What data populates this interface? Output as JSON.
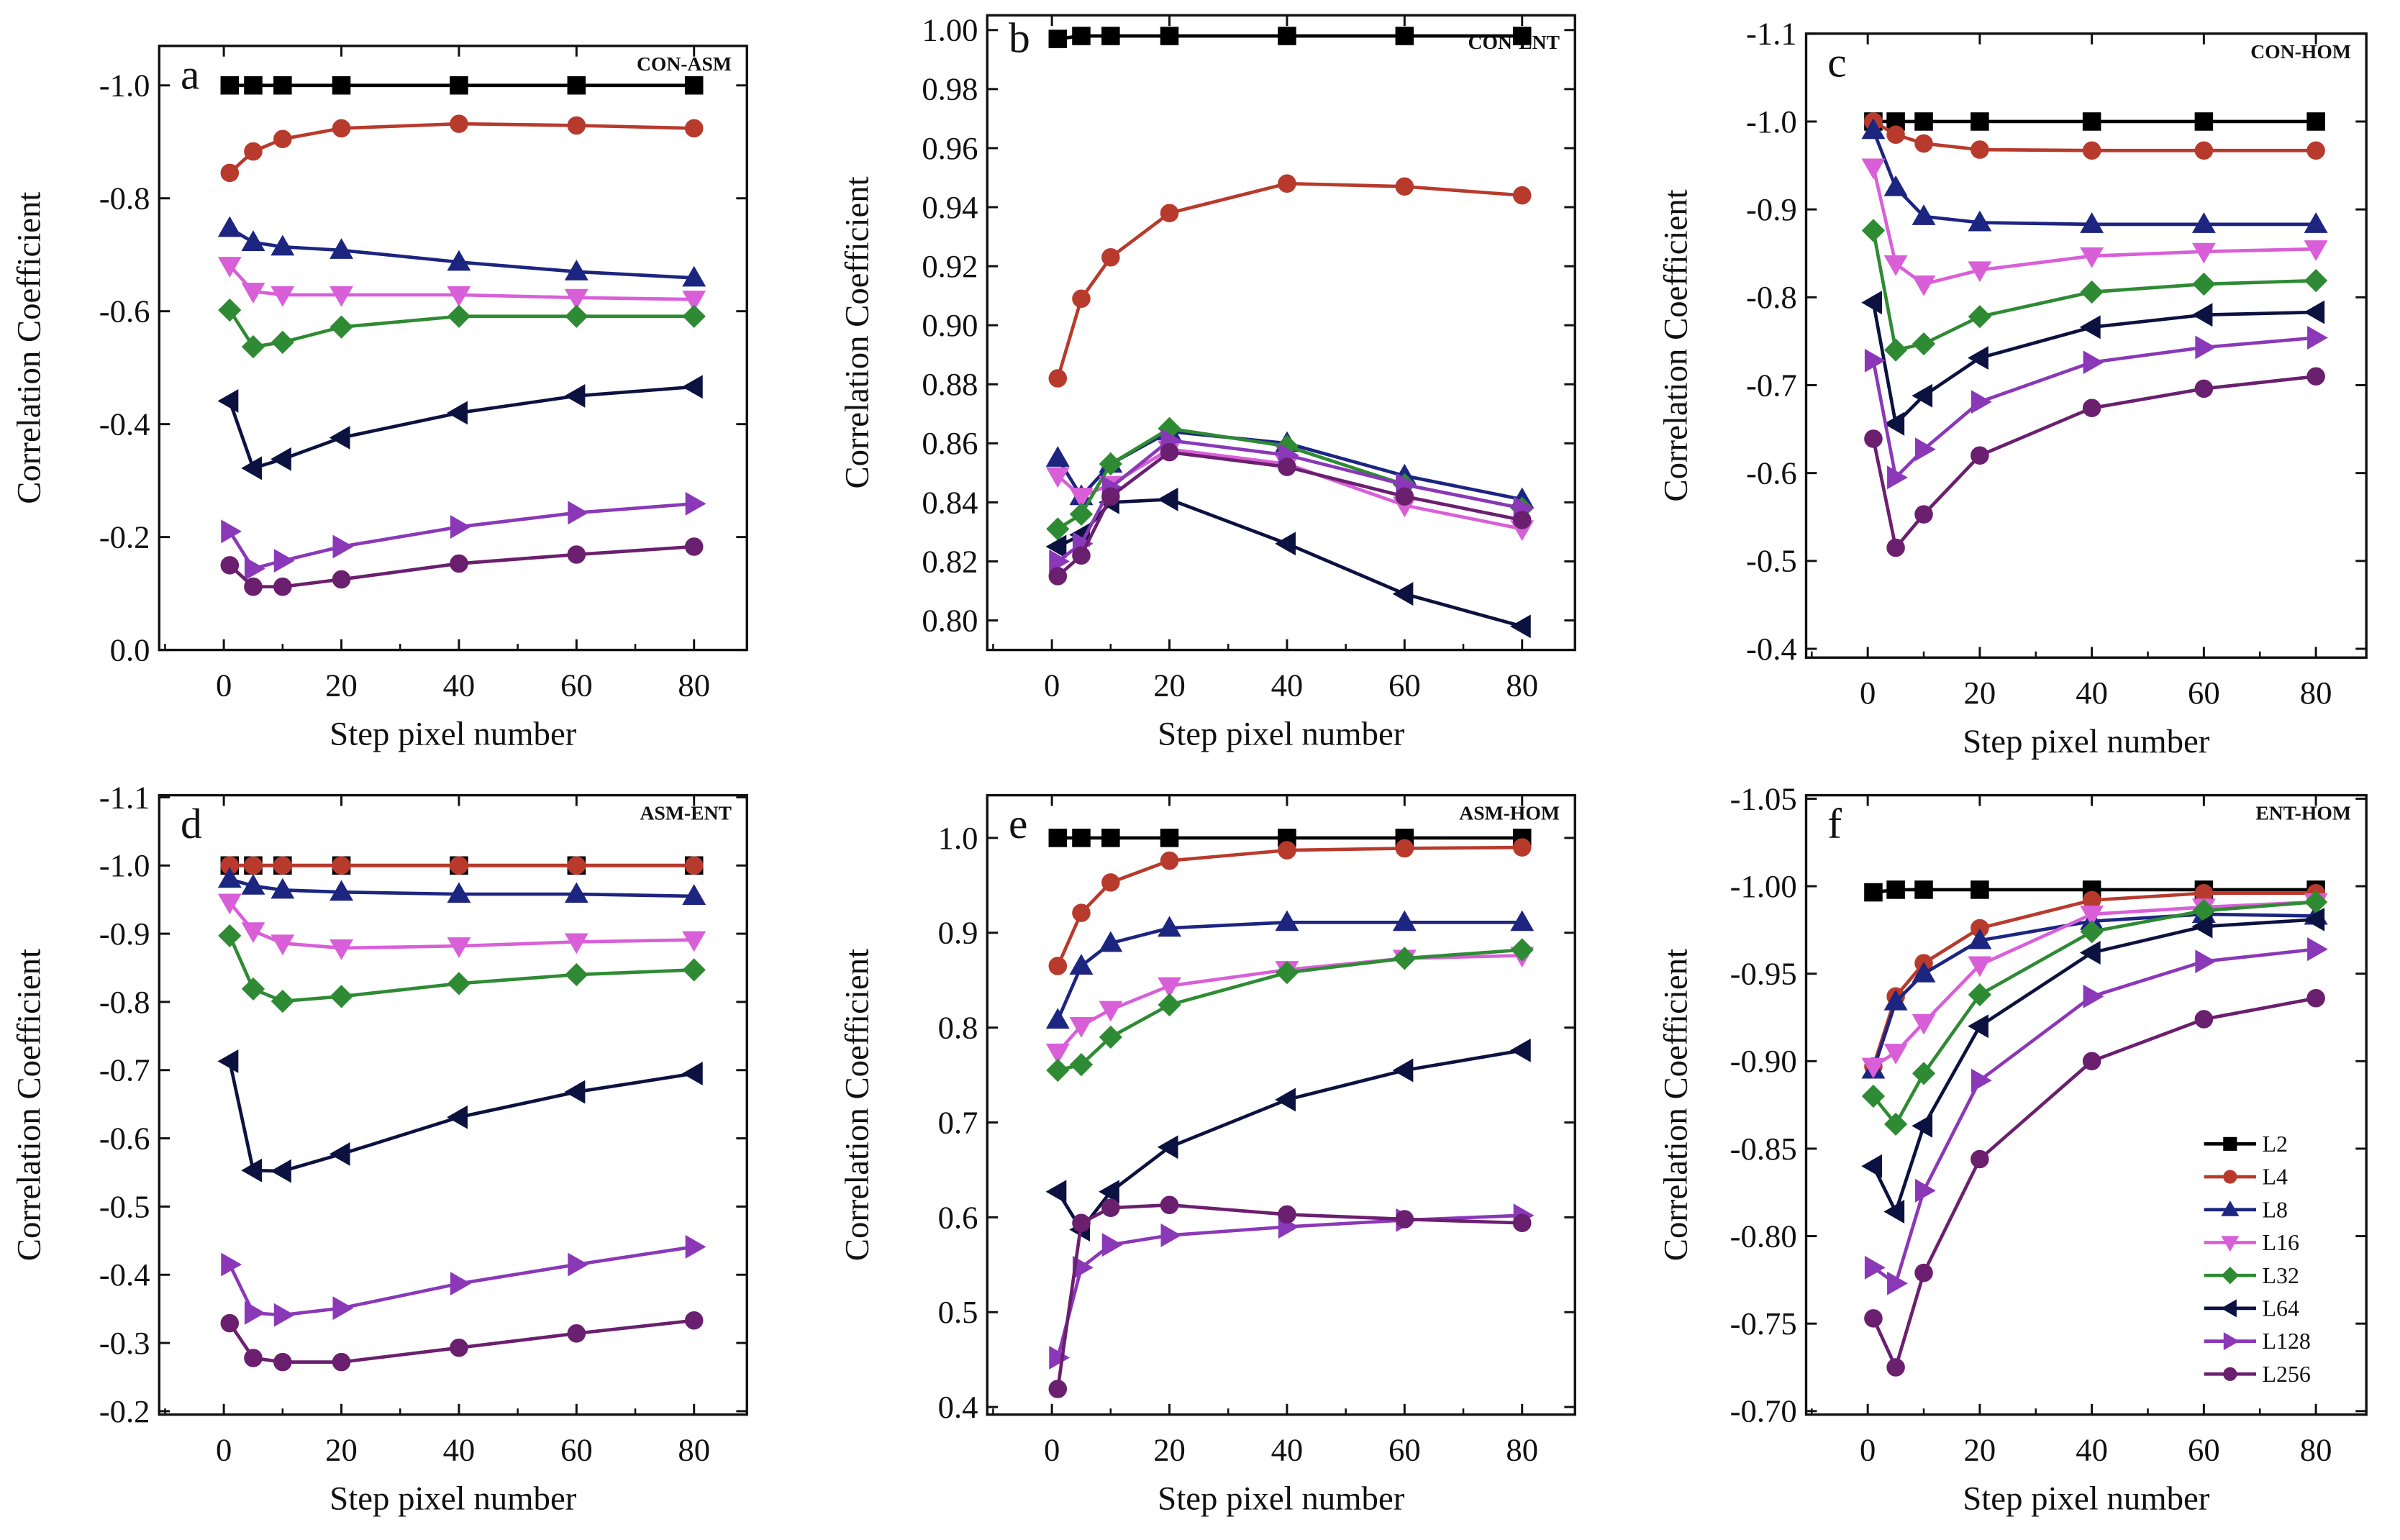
{
  "chart_data": [
    {
      "type": "line",
      "panel": "a",
      "title": "CON-ASM",
      "xlabel": "Step pixel number",
      "ylabel": "Correlation Coefficient",
      "x": [
        1,
        5,
        10,
        20,
        40,
        60,
        80
      ],
      "xlim": [
        -11,
        89
      ],
      "xticks": [
        0,
        20,
        40,
        60,
        80
      ],
      "ylim": [
        0.0,
        -1.07
      ],
      "yticks": [
        0.0,
        -0.2,
        -0.4,
        -0.6,
        -0.8,
        -1.0
      ],
      "ytick_labels": [
        "0.0",
        "-0.2",
        "-0.4",
        "-0.6",
        "-0.8",
        "-1.0"
      ],
      "series": [
        {
          "name": "L2",
          "values": [
            -1.0,
            -1.0,
            -1.0,
            -1.0,
            -1.0,
            -1.0,
            -1.0
          ]
        },
        {
          "name": "L4",
          "values": [
            -0.845,
            -0.883,
            -0.905,
            -0.924,
            -0.932,
            -0.929,
            -0.924
          ]
        },
        {
          "name": "L8",
          "values": [
            -0.747,
            -0.722,
            -0.714,
            -0.708,
            -0.687,
            -0.67,
            -0.659
          ]
        },
        {
          "name": "L16",
          "values": [
            -0.681,
            -0.635,
            -0.629,
            -0.629,
            -0.629,
            -0.624,
            -0.621
          ]
        },
        {
          "name": "L32",
          "values": [
            -0.602,
            -0.537,
            -0.545,
            -0.572,
            -0.591,
            -0.591,
            -0.591
          ]
        },
        {
          "name": "L64",
          "values": [
            -0.441,
            -0.322,
            -0.338,
            -0.376,
            -0.42,
            -0.45,
            -0.466
          ]
        },
        {
          "name": "L128",
          "values": [
            -0.21,
            -0.144,
            -0.158,
            -0.183,
            -0.218,
            -0.243,
            -0.259
          ]
        },
        {
          "name": "L256",
          "values": [
            -0.15,
            -0.112,
            -0.112,
            -0.125,
            -0.153,
            -0.169,
            -0.183
          ]
        }
      ]
    },
    {
      "type": "line",
      "panel": "b",
      "title": "CON-ENT",
      "xlabel": "Step pixel number",
      "ylabel": "Correlation Coefficient",
      "x": [
        1,
        5,
        10,
        20,
        40,
        60,
        80
      ],
      "xlim": [
        -11,
        89
      ],
      "xticks": [
        0,
        20,
        40,
        60,
        80
      ],
      "ylim": [
        0.79,
        1.005
      ],
      "yticks": [
        0.8,
        0.82,
        0.84,
        0.86,
        0.88,
        0.9,
        0.92,
        0.94,
        0.96,
        0.98,
        1.0
      ],
      "ytick_labels": [
        "0.80",
        "0.82",
        "0.84",
        "0.86",
        "0.88",
        "0.90",
        "0.92",
        "0.94",
        "0.96",
        "0.98",
        "1.00"
      ],
      "series": [
        {
          "name": "L2",
          "values": [
            0.997,
            0.998,
            0.998,
            0.998,
            0.998,
            0.998,
            0.998
          ]
        },
        {
          "name": "L4",
          "values": [
            0.882,
            0.909,
            0.923,
            0.938,
            0.948,
            0.947,
            0.944
          ]
        },
        {
          "name": "L8",
          "values": [
            0.855,
            0.842,
            0.853,
            0.864,
            0.86,
            0.849,
            0.841
          ]
        },
        {
          "name": "L16",
          "values": [
            0.849,
            0.842,
            0.846,
            0.858,
            0.853,
            0.839,
            0.831
          ]
        },
        {
          "name": "L32",
          "values": [
            0.831,
            0.836,
            0.853,
            0.865,
            0.859,
            0.846,
            0.838
          ]
        },
        {
          "name": "L64",
          "values": [
            0.825,
            0.829,
            0.84,
            0.841,
            0.826,
            0.809,
            0.798
          ]
        },
        {
          "name": "L128",
          "values": [
            0.82,
            0.826,
            0.845,
            0.861,
            0.856,
            0.846,
            0.838
          ]
        },
        {
          "name": "L256",
          "values": [
            0.815,
            0.822,
            0.842,
            0.857,
            0.852,
            0.842,
            0.834
          ]
        }
      ]
    },
    {
      "type": "line",
      "panel": "c",
      "title": "CON-HOM",
      "xlabel": "Step pixel number",
      "ylabel": "Correlation Coefficient",
      "x": [
        1,
        5,
        10,
        20,
        40,
        60,
        80
      ],
      "xlim": [
        -11,
        89
      ],
      "xticks": [
        0,
        20,
        40,
        60,
        80
      ],
      "ylim": [
        -0.39,
        -1.1
      ],
      "yticks": [
        -0.4,
        -0.5,
        -0.6,
        -0.7,
        -0.8,
        -0.9,
        -1.0,
        -1.1
      ],
      "ytick_labels": [
        "-0.4",
        "-0.5",
        "-0.6",
        "-0.7",
        "-0.8",
        "-0.9",
        "-1.0",
        "-1.1"
      ],
      "series": [
        {
          "name": "L2",
          "values": [
            -1.0,
            -1.0,
            -1.0,
            -1.0,
            -1.0,
            -1.0,
            -1.0
          ]
        },
        {
          "name": "L4",
          "values": [
            -1.0,
            -0.985,
            -0.975,
            -0.968,
            -0.967,
            -0.967,
            -0.967
          ]
        },
        {
          "name": "L8",
          "values": [
            -0.99,
            -0.925,
            -0.892,
            -0.885,
            -0.883,
            -0.883,
            -0.883
          ]
        },
        {
          "name": "L16",
          "values": [
            -0.948,
            -0.838,
            -0.815,
            -0.831,
            -0.847,
            -0.852,
            -0.855
          ]
        },
        {
          "name": "L32",
          "values": [
            -0.876,
            -0.74,
            -0.747,
            -0.778,
            -0.806,
            -0.815,
            -0.819
          ]
        },
        {
          "name": "L64",
          "values": [
            -0.794,
            -0.656,
            -0.688,
            -0.731,
            -0.766,
            -0.78,
            -0.783
          ]
        },
        {
          "name": "L128",
          "values": [
            -0.728,
            -0.595,
            -0.627,
            -0.681,
            -0.726,
            -0.743,
            -0.754
          ]
        },
        {
          "name": "L256",
          "values": [
            -0.639,
            -0.515,
            -0.553,
            -0.62,
            -0.674,
            -0.696,
            -0.71
          ]
        }
      ]
    },
    {
      "type": "line",
      "panel": "d",
      "title": "ASM-ENT",
      "xlabel": "Step pixel number",
      "ylabel": "Correlation Coefficient",
      "x": [
        1,
        5,
        10,
        20,
        40,
        60,
        80
      ],
      "xlim": [
        -11,
        89
      ],
      "xticks": [
        0,
        20,
        40,
        60,
        80
      ],
      "ylim": [
        -0.195,
        -1.103
      ],
      "yticks": [
        -0.2,
        -0.3,
        -0.4,
        -0.5,
        -0.6,
        -0.7,
        -0.8,
        -0.9,
        -1.0,
        -1.1
      ],
      "ytick_labels": [
        "-0.2",
        "-0.3",
        "-0.4",
        "-0.5",
        "-0.6",
        "-0.7",
        "-0.8",
        "-0.9",
        "-1.0",
        "-1.1"
      ],
      "series": [
        {
          "name": "L2",
          "values": [
            -1.0,
            -1.0,
            -1.0,
            -1.0,
            -1.0,
            -1.0,
            -1.0
          ]
        },
        {
          "name": "L4",
          "values": [
            -1.0,
            -1.0,
            -1.0,
            -1.0,
            -1.0,
            -1.0,
            -1.0
          ]
        },
        {
          "name": "L8",
          "values": [
            -0.98,
            -0.97,
            -0.964,
            -0.961,
            -0.958,
            -0.958,
            -0.955
          ]
        },
        {
          "name": "L16",
          "values": [
            -0.946,
            -0.904,
            -0.886,
            -0.879,
            -0.882,
            -0.888,
            -0.891
          ]
        },
        {
          "name": "L32",
          "values": [
            -0.897,
            -0.819,
            -0.801,
            -0.808,
            -0.827,
            -0.84,
            -0.847
          ]
        },
        {
          "name": "L64",
          "values": [
            -0.713,
            -0.553,
            -0.552,
            -0.577,
            -0.631,
            -0.668,
            -0.695
          ]
        },
        {
          "name": "L128",
          "values": [
            -0.415,
            -0.344,
            -0.341,
            -0.351,
            -0.387,
            -0.415,
            -0.441
          ]
        },
        {
          "name": "L256",
          "values": [
            -0.329,
            -0.278,
            -0.272,
            -0.272,
            -0.293,
            -0.314,
            -0.333
          ]
        }
      ]
    },
    {
      "type": "line",
      "panel": "e",
      "title": "ASM-HOM",
      "xlabel": "Step pixel number",
      "ylabel": "Correlation Coefficient",
      "x": [
        1,
        5,
        10,
        20,
        40,
        60,
        80
      ],
      "xlim": [
        -11,
        89
      ],
      "xticks": [
        0,
        20,
        40,
        60,
        80
      ],
      "ylim": [
        0.392,
        1.045
      ],
      "yticks": [
        0.4,
        0.5,
        0.6,
        0.7,
        0.8,
        0.9,
        1.0
      ],
      "ytick_labels": [
        "0.4",
        "0.5",
        "0.6",
        "0.7",
        "0.8",
        "0.9",
        "1.0"
      ],
      "series": [
        {
          "name": "L2",
          "values": [
            1.0,
            1.0,
            1.0,
            1.0,
            1.0,
            1.0,
            1.0
          ]
        },
        {
          "name": "L4",
          "values": [
            0.865,
            0.921,
            0.953,
            0.976,
            0.987,
            0.989,
            0.99
          ]
        },
        {
          "name": "L8",
          "values": [
            0.808,
            0.865,
            0.889,
            0.905,
            0.911,
            0.911,
            0.911
          ]
        },
        {
          "name": "L16",
          "values": [
            0.774,
            0.802,
            0.819,
            0.844,
            0.861,
            0.873,
            0.876
          ]
        },
        {
          "name": "L32",
          "values": [
            0.755,
            0.761,
            0.79,
            0.824,
            0.858,
            0.873,
            0.882
          ]
        },
        {
          "name": "L64",
          "values": [
            0.627,
            0.587,
            0.627,
            0.674,
            0.724,
            0.755,
            0.776
          ]
        },
        {
          "name": "L128",
          "values": [
            0.452,
            0.547,
            0.571,
            0.581,
            0.59,
            0.597,
            0.602
          ]
        },
        {
          "name": "L256",
          "values": [
            0.419,
            0.594,
            0.61,
            0.613,
            0.603,
            0.598,
            0.594
          ]
        }
      ]
    },
    {
      "type": "line",
      "panel": "f",
      "title": "ENT-HOM",
      "xlabel": "Step pixel number",
      "ylabel": "Correlation Coefficient",
      "x": [
        1,
        5,
        10,
        20,
        40,
        60,
        80
      ],
      "xlim": [
        -11,
        89
      ],
      "xticks": [
        0,
        20,
        40,
        60,
        80
      ],
      "ylim": [
        -0.698,
        -1.052
      ],
      "yticks": [
        -0.7,
        -0.75,
        -0.8,
        -0.85,
        -0.9,
        -0.95,
        -1.0,
        -1.05
      ],
      "ytick_labels": [
        "-0.70",
        "-0.75",
        "-0.80",
        "-0.85",
        "-0.90",
        "-0.95",
        "-1.00",
        "-1.05"
      ],
      "legend": "bottom-right",
      "series": [
        {
          "name": "L2",
          "values": [
            -0.9965,
            -0.998,
            -0.998,
            -0.998,
            -0.998,
            -0.998,
            -0.998
          ]
        },
        {
          "name": "L4",
          "values": [
            -0.897,
            -0.937,
            -0.956,
            -0.976,
            -0.992,
            -0.996,
            -0.996
          ]
        },
        {
          "name": "L8",
          "values": [
            -0.895,
            -0.934,
            -0.95,
            -0.969,
            -0.98,
            -0.984,
            -0.983
          ]
        },
        {
          "name": "L16",
          "values": [
            -0.897,
            -0.905,
            -0.922,
            -0.955,
            -0.984,
            -0.988,
            -0.991
          ]
        },
        {
          "name": "L32",
          "values": [
            -0.88,
            -0.864,
            -0.893,
            -0.938,
            -0.974,
            -0.986,
            -0.991
          ]
        },
        {
          "name": "L64",
          "values": [
            -0.84,
            -0.814,
            -0.863,
            -0.92,
            -0.962,
            -0.977,
            -0.981
          ]
        },
        {
          "name": "L128",
          "values": [
            -0.782,
            -0.773,
            -0.826,
            -0.889,
            -0.937,
            -0.957,
            -0.964
          ]
        },
        {
          "name": "L256",
          "values": [
            -0.753,
            -0.725,
            -0.779,
            -0.844,
            -0.9,
            -0.924,
            -0.936
          ]
        }
      ]
    }
  ],
  "legend": {
    "entries": [
      "L2",
      "L4",
      "L8",
      "L16",
      "L32",
      "L64",
      "L128",
      "L256"
    ],
    "colors": [
      "#000000",
      "#b83a2c",
      "#1c2580",
      "#d95fd9",
      "#2f8a34",
      "#0c1240",
      "#8a38b8",
      "#6b1f6f"
    ],
    "markers": [
      "square",
      "circle",
      "triangle-up",
      "triangle-down",
      "diamond",
      "triangle-left",
      "triangle-right",
      "circle"
    ]
  }
}
